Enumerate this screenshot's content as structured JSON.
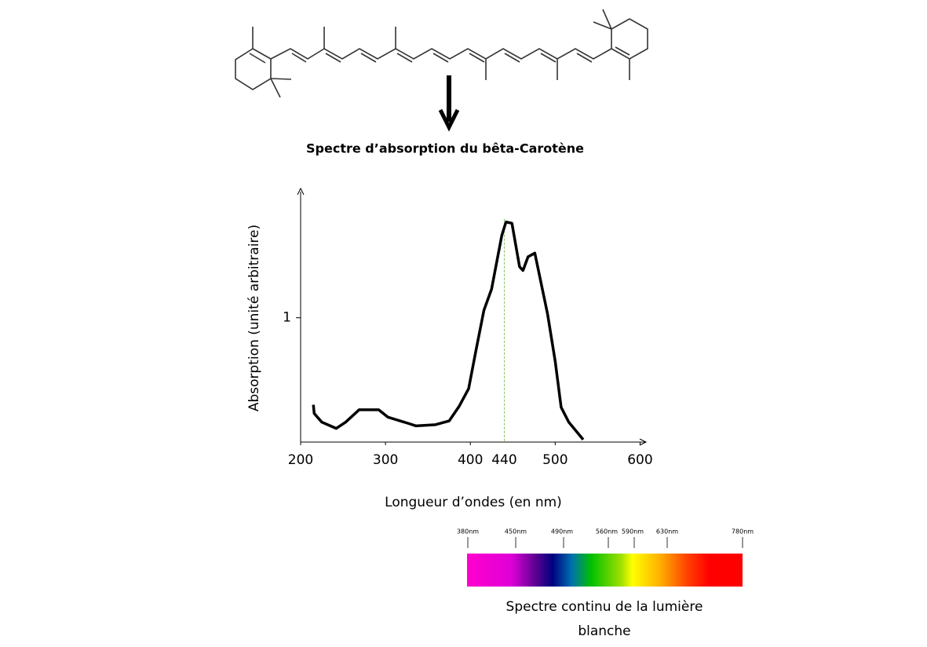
{
  "chart_data": {
    "type": "line",
    "title": "Spectre d’absorption du bêta-Carotène",
    "x_label": "Longueur d’ondes (en nm)",
    "y_label": "Absorption (unité arbitraire)",
    "xlim": [
      200,
      607
    ],
    "ylim": [
      0,
      2.04
    ],
    "xticks": [
      200,
      300,
      400,
      500,
      600
    ],
    "yticks": [
      1
    ],
    "marker_x": 440,
    "marker_color": "#7dc855",
    "series": [
      {
        "color": "#000000",
        "x": [
          215,
          216,
          225,
          242,
          253,
          269,
          292,
          303,
          327,
          336,
          359,
          375,
          387,
          398,
          407,
          416,
          425,
          437,
          442,
          449,
          458,
          462,
          468,
          476,
          491,
          500,
          507,
          516,
          533
        ],
        "values": [
          0.3,
          0.23,
          0.16,
          0.11,
          0.16,
          0.26,
          0.26,
          0.2,
          0.15,
          0.13,
          0.14,
          0.17,
          0.29,
          0.43,
          0.75,
          1.06,
          1.23,
          1.66,
          1.77,
          1.76,
          1.41,
          1.38,
          1.49,
          1.52,
          1.03,
          0.65,
          0.28,
          0.16,
          0.02
        ]
      }
    ]
  },
  "spectrum": {
    "ticks": [
      "380nm",
      "450nm",
      "490nm",
      "560nm",
      "590nm",
      "630nm",
      "780nm"
    ],
    "caption": "Spectre continu de la lumière blanche"
  }
}
